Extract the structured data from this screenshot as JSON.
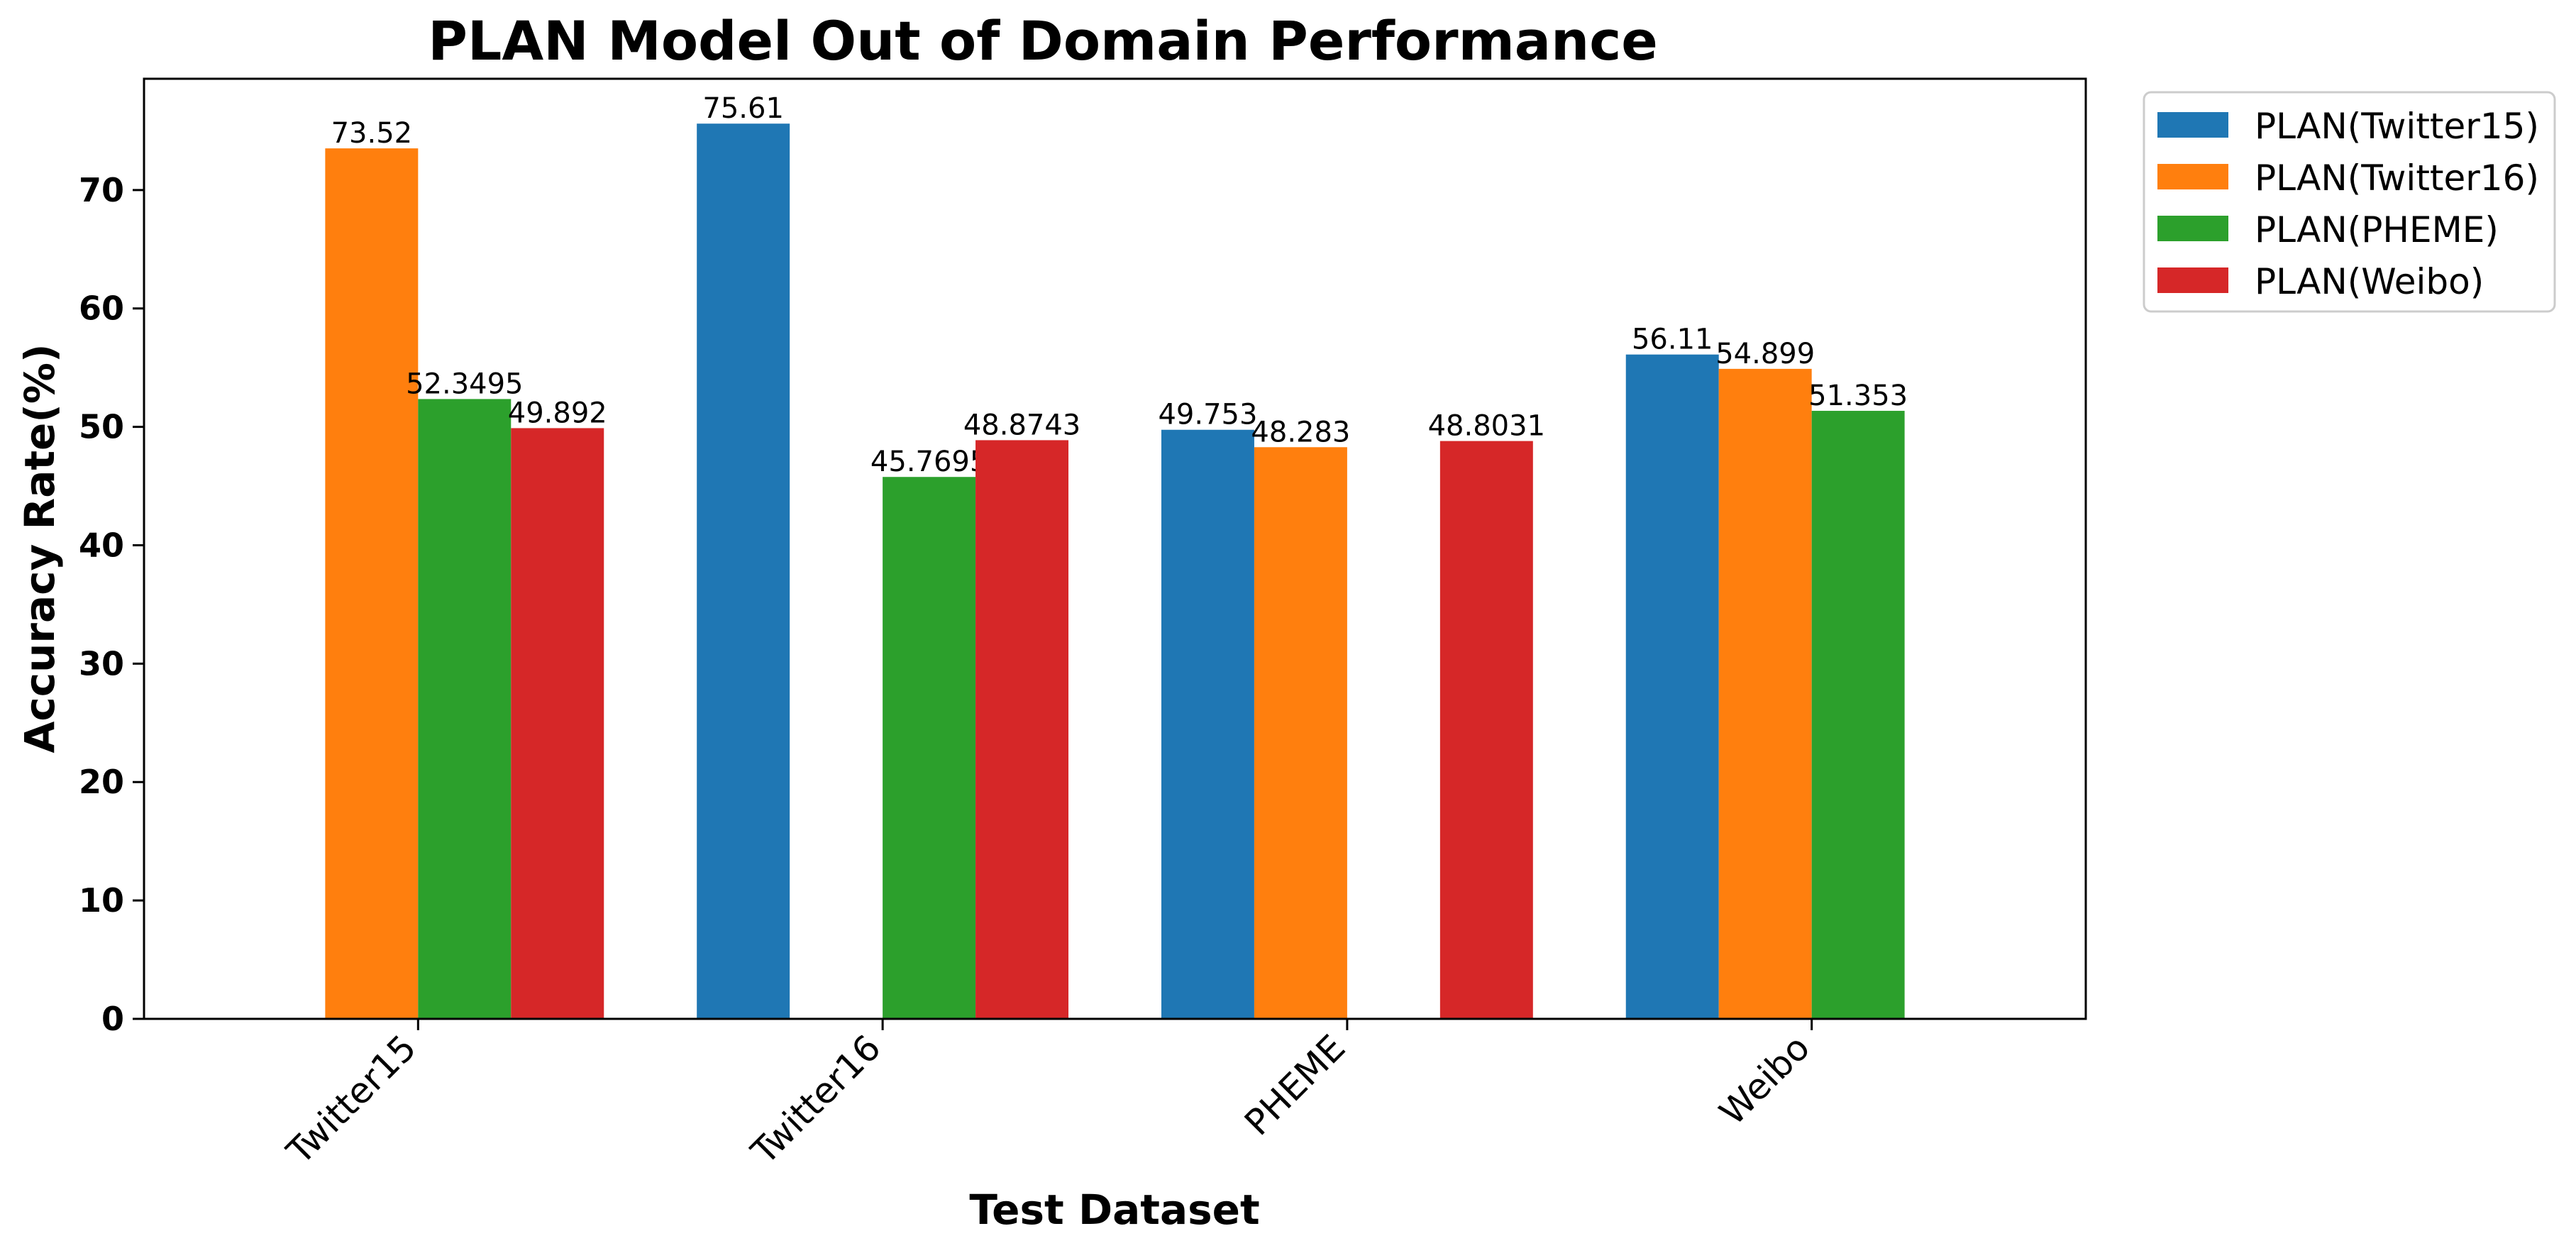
{
  "chart_data": {
    "type": "bar",
    "title": "PLAN Model Out of Domain Performance",
    "xlabel": "Test Dataset",
    "ylabel": "Accuracy Rate(%)",
    "categories": [
      "Twitter15",
      "Twitter16",
      "PHEME",
      "Weibo"
    ],
    "ylim": [
      0,
      79.4
    ],
    "yticks": [
      0,
      10,
      20,
      30,
      40,
      50,
      60,
      70
    ],
    "legend_position": "outside-top-right",
    "grid": false,
    "series": [
      {
        "name": "PLAN(Twitter15)",
        "color": "#1f77b4",
        "values": [
          null,
          75.61,
          49.753,
          56.11
        ],
        "labels": [
          "",
          "75.61",
          "49.753",
          "56.11"
        ]
      },
      {
        "name": "PLAN(Twitter16)",
        "color": "#ff7f0e",
        "values": [
          73.52,
          null,
          48.283,
          54.899
        ],
        "labels": [
          "73.52",
          "",
          "48.283",
          "54.899"
        ]
      },
      {
        "name": "PLAN(PHEME)",
        "color": "#2ca02c",
        "values": [
          52.3495,
          45.7695,
          null,
          51.353
        ],
        "labels": [
          "52.3495",
          "45.7695",
          "",
          "51.353"
        ]
      },
      {
        "name": "PLAN(Weibo)",
        "color": "#d62728",
        "values": [
          49.892,
          48.8743,
          48.8031,
          null
        ],
        "labels": [
          "49.892",
          "48.8743",
          "48.8031",
          ""
        ]
      }
    ]
  }
}
